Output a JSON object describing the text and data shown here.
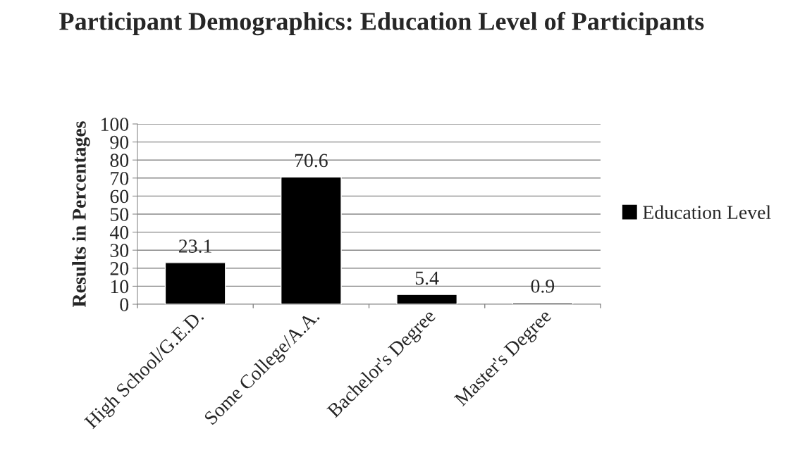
{
  "chart_data": {
    "type": "bar",
    "title": "Participant Demographics: Education Level of Participants",
    "ylabel": "Results in Percentages",
    "categories": [
      "High School/G.E.D.",
      "Some College/A.A.",
      "Bachelor's Degree",
      "Master's Degree"
    ],
    "series": [
      {
        "name": "Education Level",
        "color": "#000000",
        "values": [
          23.1,
          70.6,
          5.4,
          0.9
        ]
      }
    ],
    "ylim": [
      0,
      100
    ],
    "yticks": [
      0,
      10,
      20,
      30,
      40,
      50,
      60,
      70,
      80,
      90,
      100
    ],
    "grid": "y",
    "legend": "right",
    "data_labels": true
  }
}
